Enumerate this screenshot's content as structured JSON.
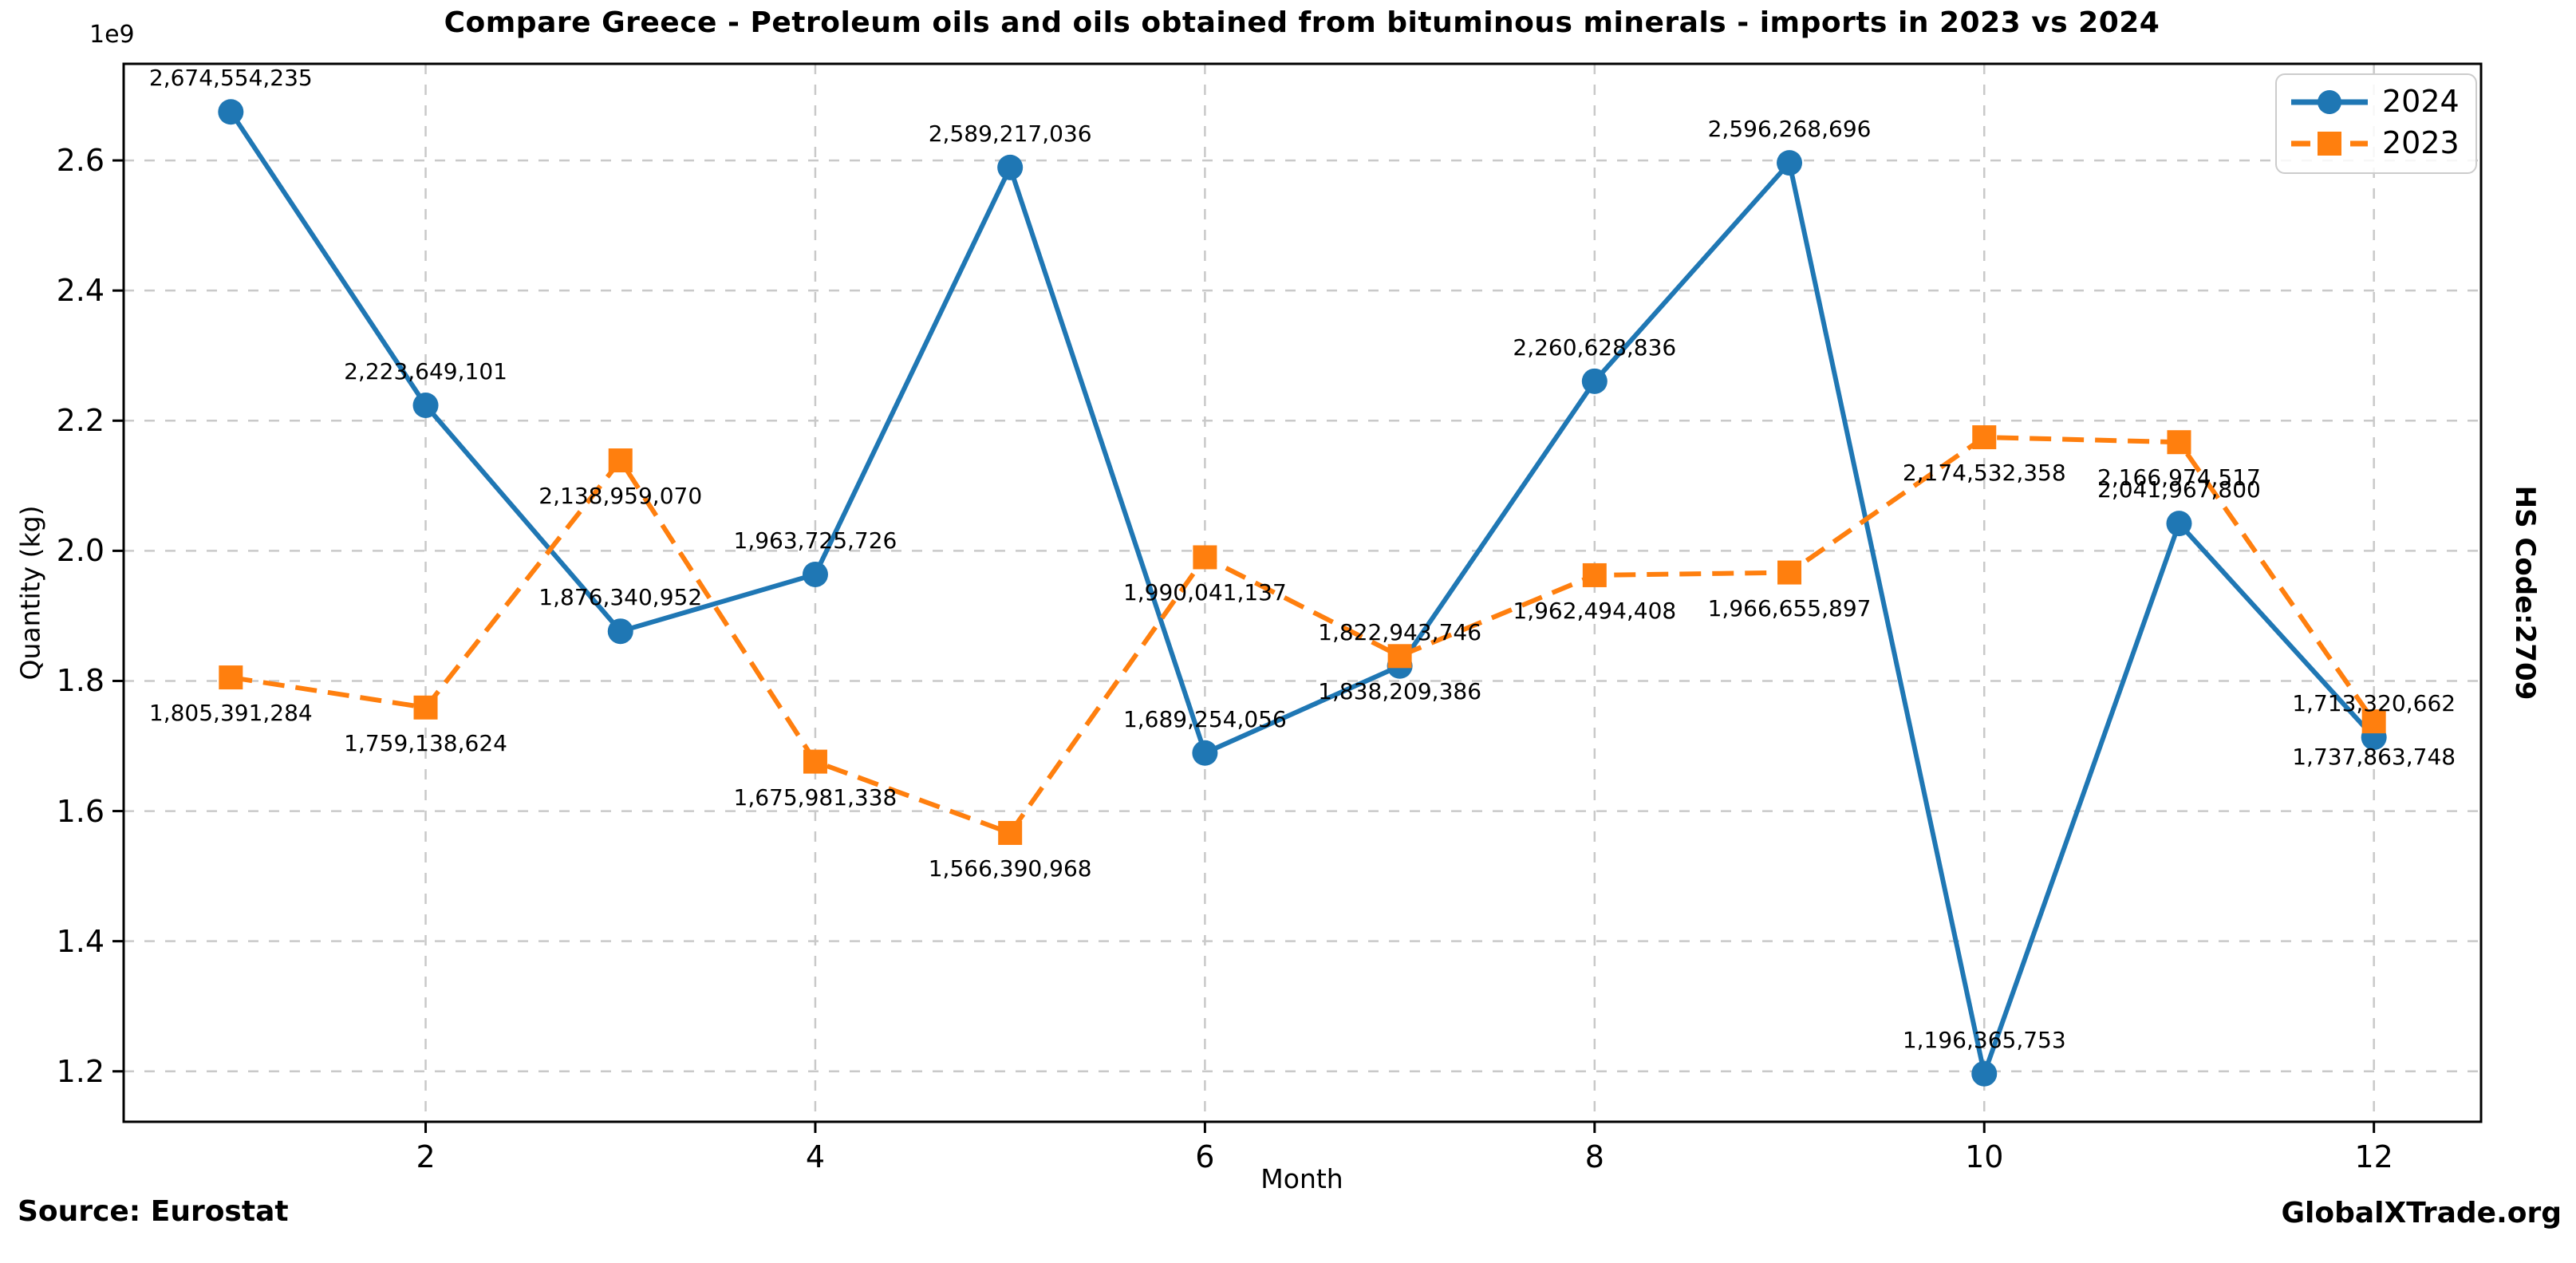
{
  "figure": {
    "source": "Source: Eurostat",
    "brand": "GlobalXTrade.org",
    "right_label": "HS Code:2709"
  },
  "chart_data": {
    "type": "line",
    "title": "Compare Greece - Petroleum oils and oils obtained from bituminous minerals - imports in 2023 vs 2024",
    "xlabel": "Month",
    "ylabel": "Quantity (kg)",
    "y_offset_text": "1e9",
    "x": [
      1,
      2,
      3,
      4,
      5,
      6,
      7,
      8,
      9,
      10,
      11,
      12
    ],
    "xticks": [
      2,
      4,
      6,
      8,
      10,
      12
    ],
    "yticks": [
      1200000000,
      1400000000,
      1600000000,
      1800000000,
      2000000000,
      2200000000,
      2400000000,
      2600000000
    ],
    "xlim": [
      0.45,
      12.55
    ],
    "ylim": [
      1122456329,
      2748463659
    ],
    "grid": true,
    "grid_style": "dashed",
    "legend_position": "upper right",
    "series": [
      {
        "name": "2024",
        "color": "#1f77b4",
        "style": "solid",
        "marker": "circle",
        "label_position": "above",
        "values": [
          2674554235,
          2223649101,
          1876340952,
          1963725726,
          2589217036,
          1689254056,
          1822943746,
          2260628836,
          2596268696,
          1196365753,
          2041967800,
          1713320662
        ]
      },
      {
        "name": "2023",
        "color": "#ff7f0e",
        "style": "dashed",
        "marker": "square",
        "label_position": "below",
        "values": [
          1805391284,
          1759138624,
          2138959070,
          1675981338,
          1566390968,
          1990041137,
          1838209386,
          1962494408,
          1966655897,
          2174532358,
          2166974517,
          1737863748
        ]
      }
    ]
  }
}
